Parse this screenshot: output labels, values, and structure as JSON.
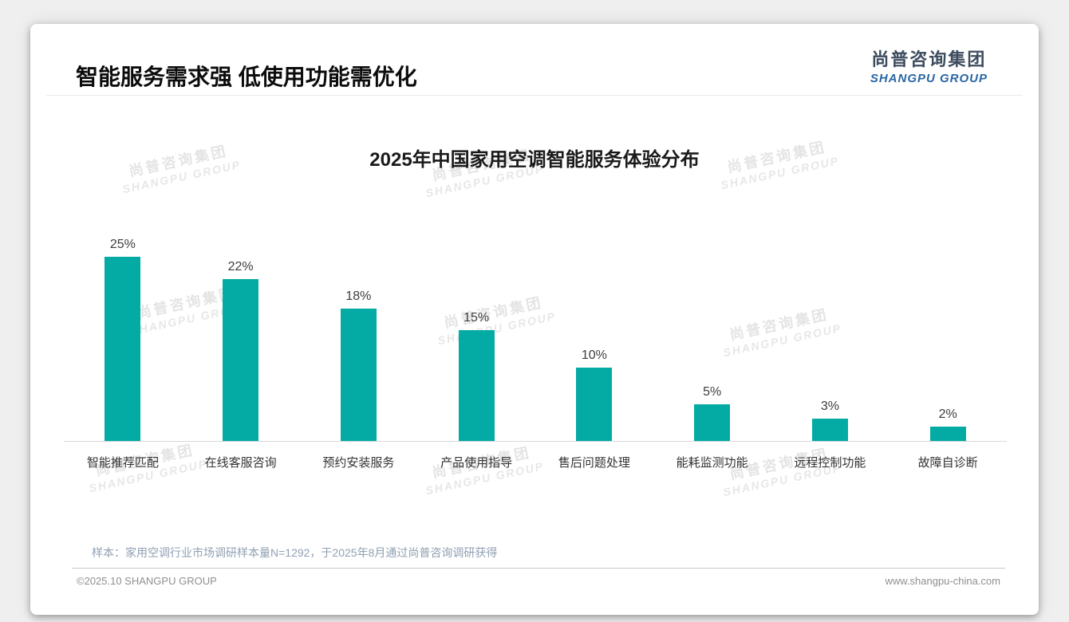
{
  "page": {
    "title": "智能服务需求强 低使用功能需优化",
    "logo": {
      "cn": "尚普咨询集团",
      "en": "SHANGPU GROUP"
    },
    "watermark": {
      "cn": "尚普咨询集团",
      "en": "SHANGPU GROUP"
    },
    "note": "样本：家用空调行业市场调研样本量N=1292，于2025年8月通过尚普咨询调研获得",
    "footer": {
      "left": "©2025.10 SHANGPU GROUP",
      "right": "www.shangpu-china.com"
    }
  },
  "chart_data": {
    "type": "bar",
    "title": "2025年中国家用空调智能服务体验分布",
    "categories": [
      "智能推荐匹配",
      "在线客服咨询",
      "预约安装服务",
      "产品使用指导",
      "售后问题处理",
      "能耗监测功能",
      "远程控制功能",
      "故障自诊断"
    ],
    "values": [
      25,
      22,
      18,
      15,
      10,
      5,
      3,
      2
    ],
    "unit": "%",
    "bar_color": "#04aba4",
    "value_label_color": "#3d3d3d",
    "ylim": [
      0,
      25
    ],
    "grid": false,
    "legend": false
  }
}
